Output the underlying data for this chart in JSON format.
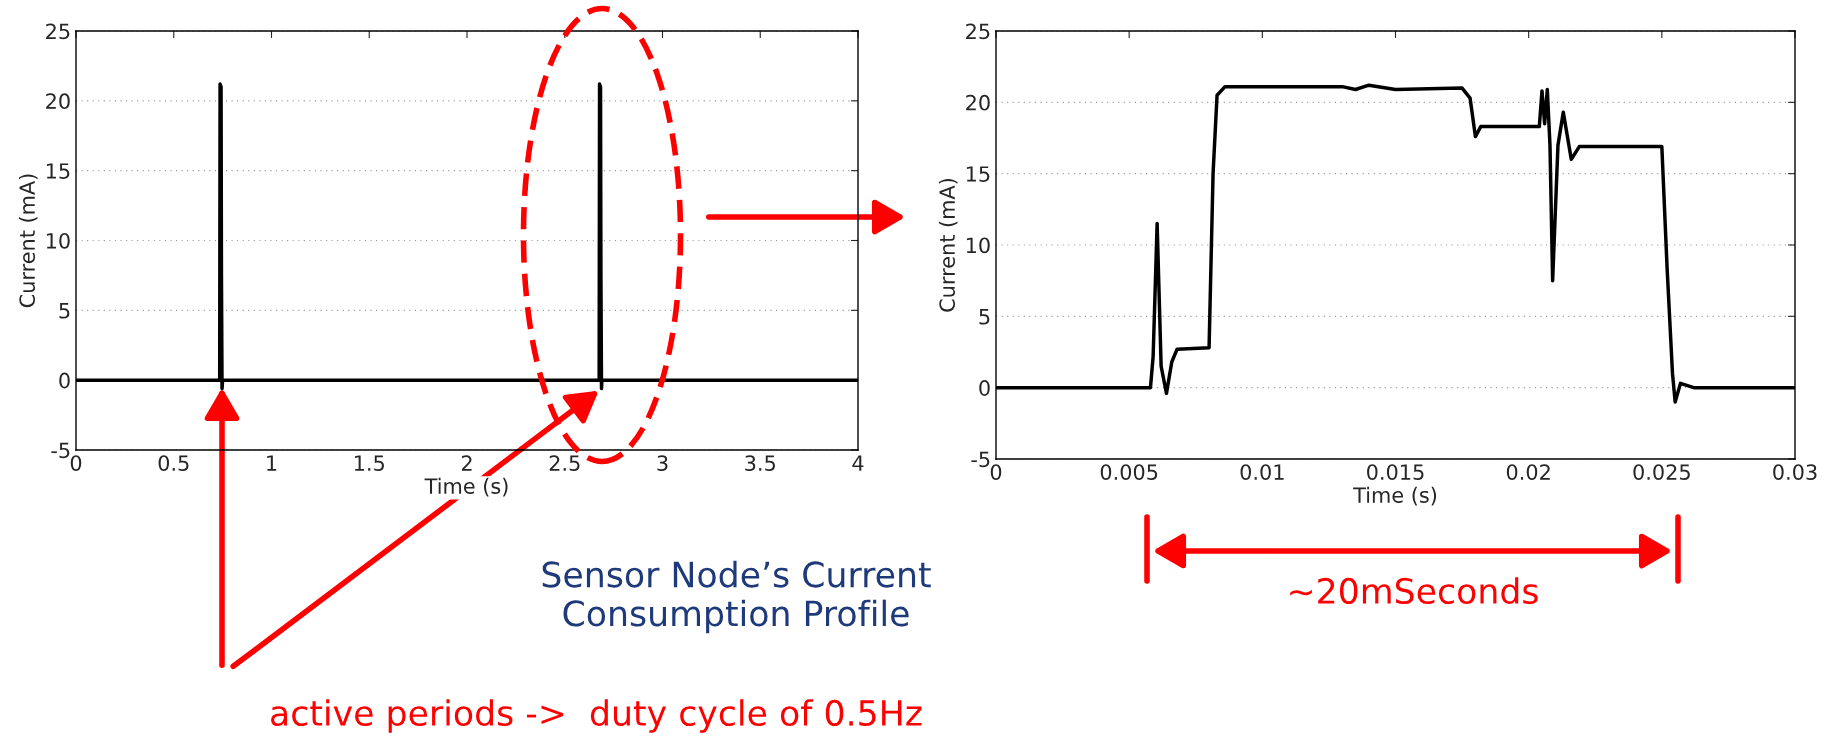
{
  "chart_data": [
    {
      "type": "line",
      "xlabel": "Time (s)",
      "ylabel": "Current (mA)",
      "xlim": [
        0,
        4
      ],
      "ylim": [
        -5,
        25
      ],
      "xticks": [
        0,
        0.5,
        1,
        1.5,
        2,
        2.5,
        3,
        3.5,
        4
      ],
      "yticks": [
        -5,
        0,
        5,
        10,
        15,
        20,
        25
      ],
      "grid": "y",
      "x": [
        0,
        0.735,
        0.737,
        0.742,
        0.744,
        0.747,
        0.75,
        2.676,
        2.678,
        2.683,
        2.685,
        2.688,
        2.69,
        4
      ],
      "series": [
        {
          "color": "#000000",
          "values": [
            0,
            0,
            21.2,
            21.0,
            7.5,
            -0.6,
            0,
            0,
            21.2,
            21.0,
            7.5,
            -0.6,
            0,
            0
          ]
        }
      ],
      "annotations": [
        "Sensor Node’s Current\nConsumption Profile",
        "active periods ->  duty cycle of 0.5Hz"
      ]
    },
    {
      "type": "line",
      "xlabel": "Time (s)",
      "ylabel": "Current (mA)",
      "xlim": [
        0,
        0.03
      ],
      "ylim": [
        -5,
        25
      ],
      "xticks": [
        0,
        0.005,
        0.01,
        0.015,
        0.02,
        0.025,
        0.03
      ],
      "yticks": [
        -5,
        0,
        5,
        10,
        15,
        20,
        25
      ],
      "grid": "y",
      "x": [
        0,
        0.0058,
        0.0059,
        0.00605,
        0.0062,
        0.0064,
        0.0066,
        0.0068,
        0.008,
        0.00815,
        0.0083,
        0.0086,
        0.013,
        0.0135,
        0.014,
        0.015,
        0.0175,
        0.0178,
        0.018,
        0.0182,
        0.0204,
        0.0205,
        0.0206,
        0.0207,
        0.0208,
        0.0209,
        0.0211,
        0.0213,
        0.0216,
        0.0219,
        0.025,
        0.0252,
        0.0254,
        0.0255,
        0.0257,
        0.0262,
        0.03
      ],
      "series": [
        {
          "color": "#000000",
          "values": [
            0,
            0,
            2.2,
            11.5,
            1.5,
            -0.4,
            1.8,
            2.7,
            2.8,
            15,
            20.5,
            21.1,
            21.1,
            20.9,
            21.2,
            20.9,
            21.0,
            20.3,
            17.6,
            18.3,
            18.3,
            20.8,
            18.5,
            20.9,
            17,
            7.5,
            17,
            19.3,
            16.0,
            16.9,
            16.9,
            8.3,
            1.0,
            -1.0,
            0.3,
            0,
            0
          ]
        }
      ],
      "annotations": [
        "~20mSeconds"
      ]
    }
  ]
}
